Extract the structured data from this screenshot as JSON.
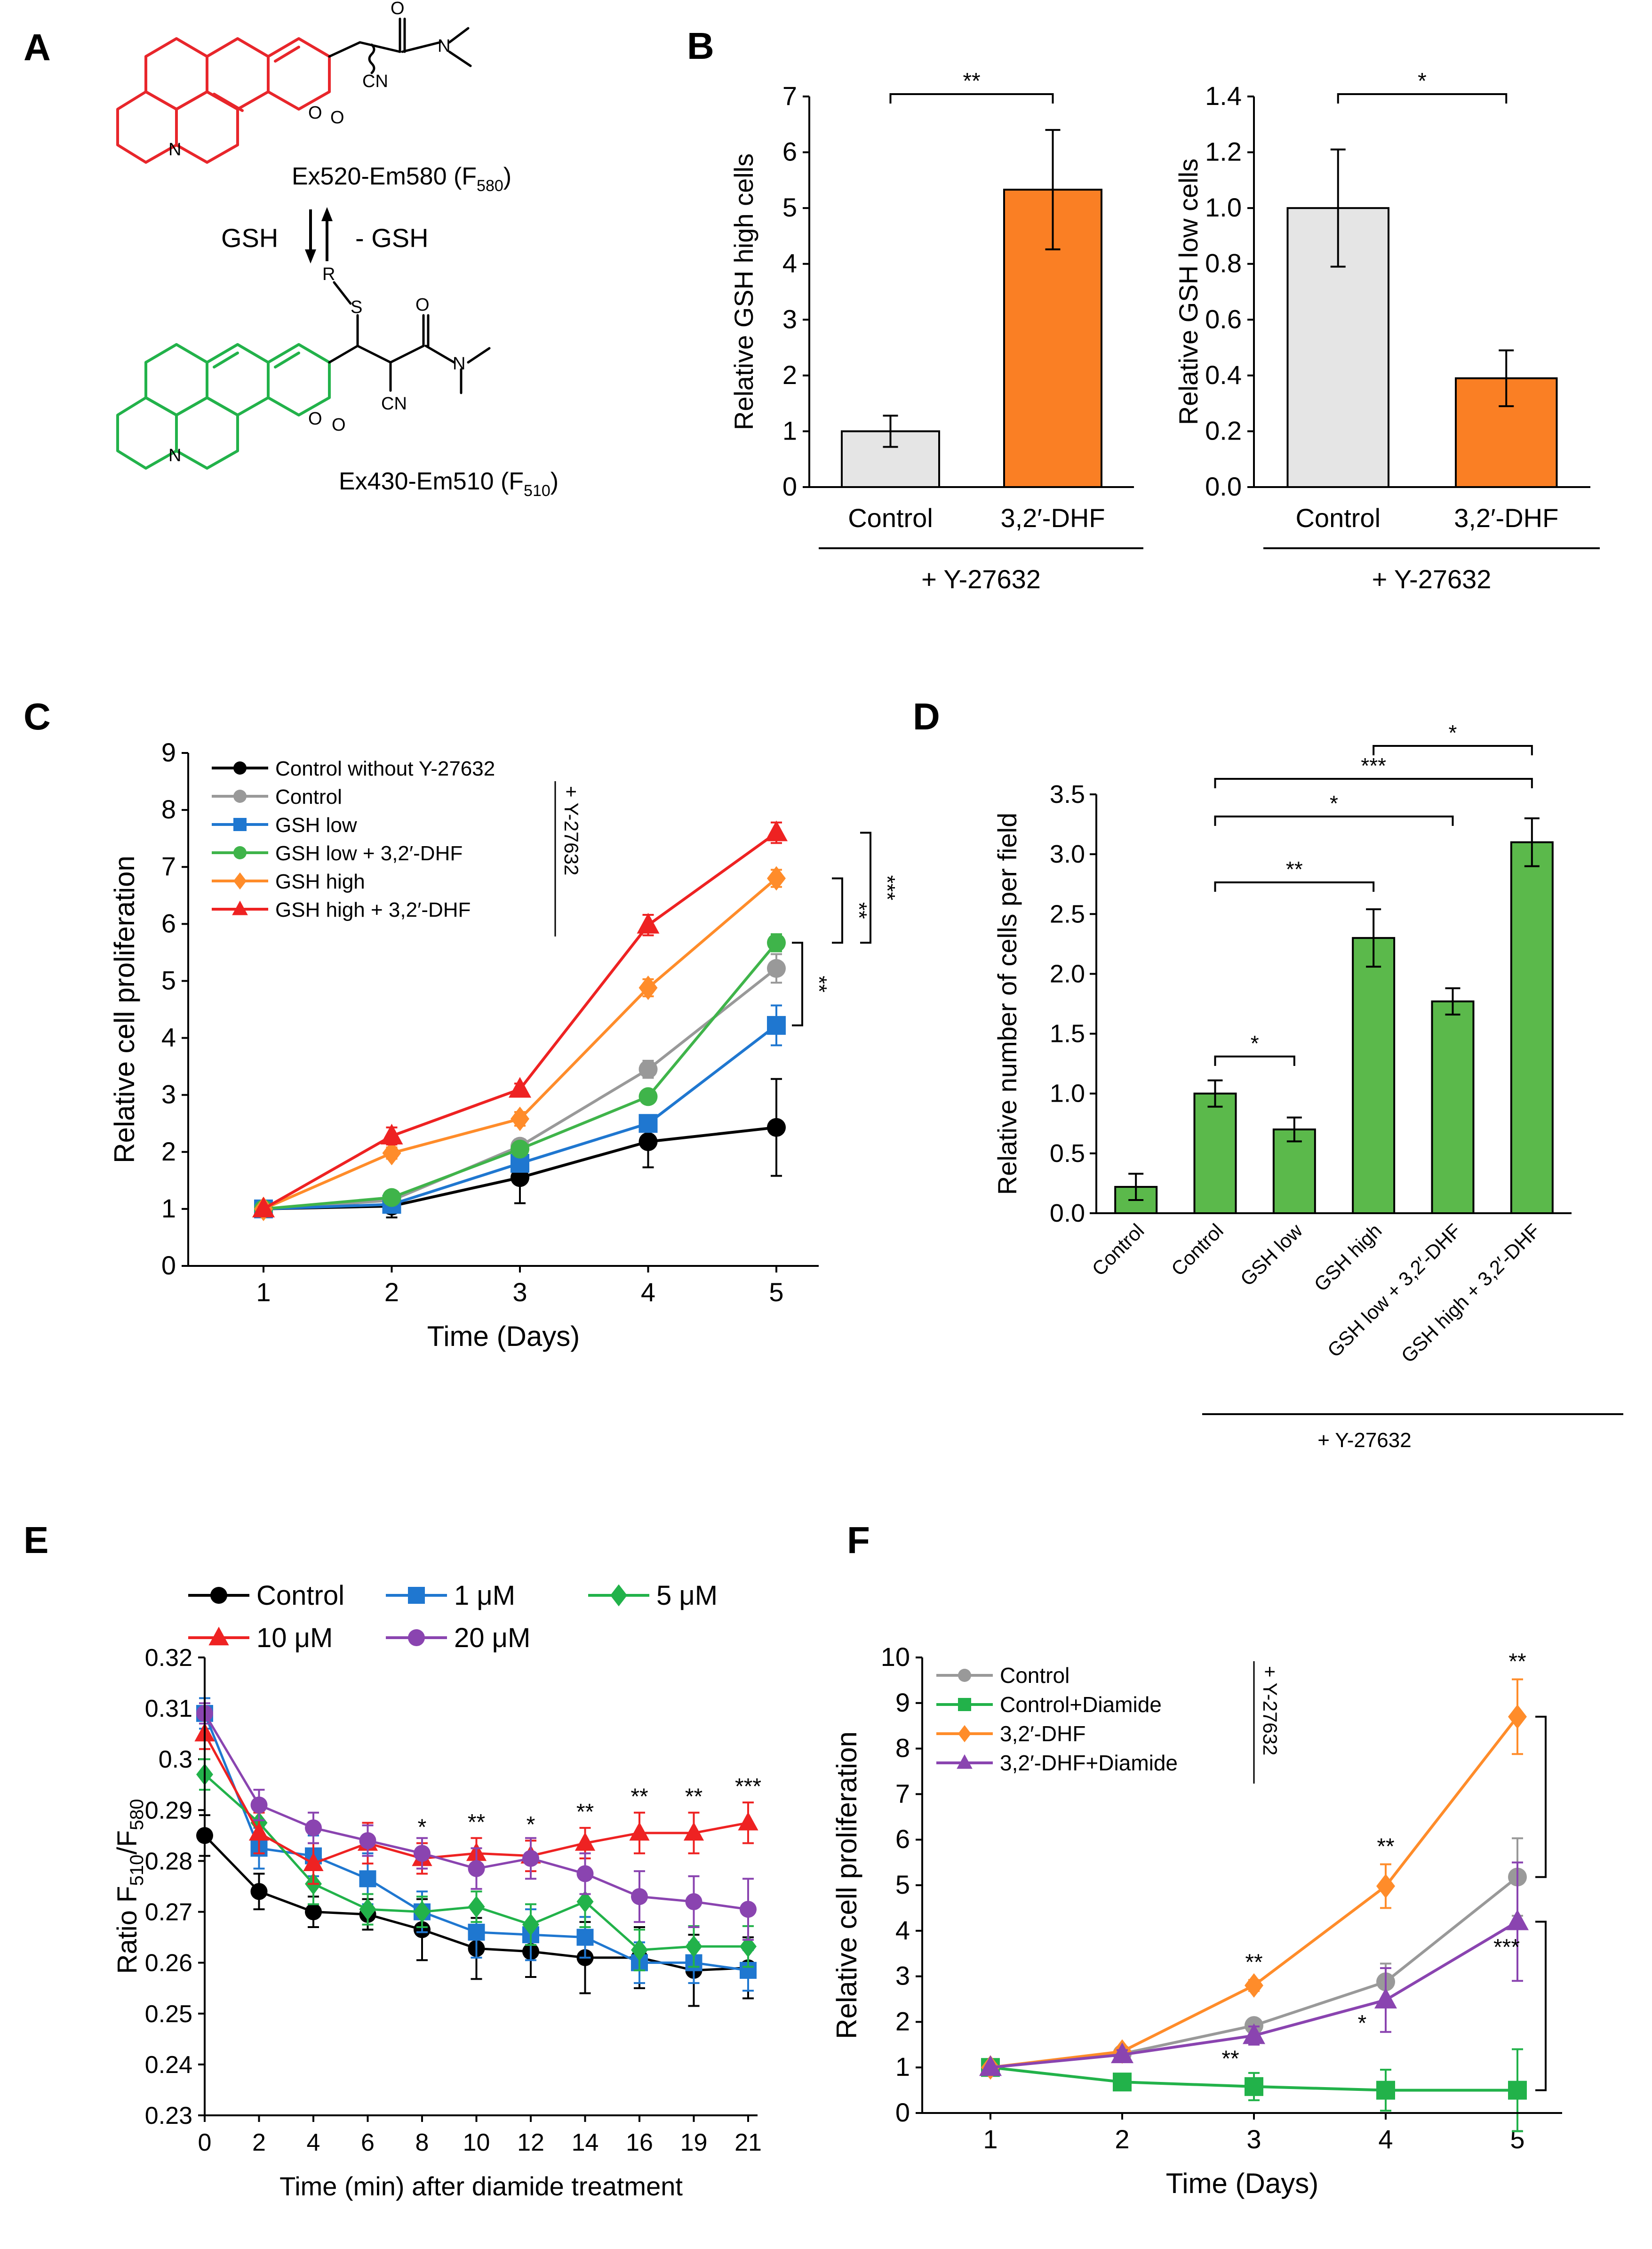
{
  "figure": {
    "panel_labels": [
      "A",
      "B",
      "C",
      "D",
      "E",
      "F"
    ]
  },
  "panel_a": {
    "top_molecule_label": "Ex520-Em580 (F",
    "top_molecule_sub": "580",
    "top_molecule_close": ")",
    "bottom_molecule_label": "Ex430-Em510 (F",
    "bottom_molecule_sub": "510",
    "bottom_molecule_close": ")",
    "reaction_forward": "GSH",
    "reaction_reverse": "- GSH",
    "atoms": {
      "oxygen": "O",
      "nitrogen": "N",
      "cn": "CN",
      "sulfur": "S",
      "r_group": "R"
    },
    "colors": {
      "red_form": "#e8262b",
      "green_form": "#22b24a"
    }
  },
  "chart_data": [
    {
      "id": "B-left",
      "type": "bar",
      "title": "",
      "xlabel": "",
      "ylabel": "Relative GSH high cells",
      "group_label": "+ Y-27632",
      "categories": [
        "Control",
        "3,2′-DHF"
      ],
      "values": [
        1.0,
        5.33
      ],
      "errors": [
        0.28,
        1.07
      ],
      "colors": [
        "#e5e5e5",
        "#fa7f24"
      ],
      "ylim": [
        0,
        7
      ],
      "yticks": [
        "0",
        "1",
        "2",
        "3",
        "4",
        "5",
        "6",
        "7"
      ],
      "significance": [
        {
          "from": 0,
          "to": 1,
          "label": "**"
        }
      ]
    },
    {
      "id": "B-right",
      "type": "bar",
      "title": "",
      "xlabel": "",
      "ylabel": "Relative GSH low cells",
      "group_label": "+ Y-27632",
      "categories": [
        "Control",
        "3,2′-DHF"
      ],
      "values": [
        1.0,
        0.39
      ],
      "errors": [
        0.21,
        0.1
      ],
      "colors": [
        "#e5e5e5",
        "#fa7f24"
      ],
      "ylim": [
        0,
        1.4
      ],
      "yticks": [
        "0.0",
        "0.2",
        "0.4",
        "0.6",
        "0.8",
        "1.0",
        "1.2",
        "1.4"
      ],
      "significance": [
        {
          "from": 0,
          "to": 1,
          "label": "*"
        }
      ]
    },
    {
      "id": "C",
      "type": "line",
      "title": "",
      "xlabel": "Time (Days)",
      "ylabel": "Relative cell proliferation",
      "x": [
        1,
        2,
        3,
        4,
        5
      ],
      "ylim": [
        0,
        9
      ],
      "yticks": [
        "0",
        "1",
        "2",
        "3",
        "4",
        "5",
        "6",
        "7",
        "8",
        "9"
      ],
      "legend_side_label": "+ Y-27632",
      "series": [
        {
          "name": "Control without Y-27632",
          "color": "#000000",
          "marker": "circle",
          "values": [
            1,
            1.05,
            1.55,
            2.18,
            2.43
          ],
          "errors": [
            0.03,
            0.2,
            0.45,
            0.45,
            0.85
          ]
        },
        {
          "name": "Control",
          "color": "#999999",
          "marker": "circle",
          "values": [
            1,
            1.15,
            2.1,
            3.45,
            5.22
          ],
          "errors": [
            0.03,
            0.1,
            0.12,
            0.15,
            0.25
          ]
        },
        {
          "name": "GSH low",
          "color": "#1f77d0",
          "marker": "square",
          "values": [
            1,
            1.08,
            1.8,
            2.5,
            4.22
          ],
          "errors": [
            0.03,
            0.08,
            0.1,
            0.1,
            0.35
          ]
        },
        {
          "name": "GSH low + 3,2′-DHF",
          "color": "#3fb44a",
          "marker": "circle",
          "values": [
            1,
            1.2,
            2.05,
            2.97,
            5.67
          ],
          "errors": [
            0.03,
            0.08,
            0.1,
            0.08,
            0.15
          ]
        },
        {
          "name": "GSH high",
          "color": "#ff8c2a",
          "marker": "diamond",
          "values": [
            1,
            1.98,
            2.58,
            4.88,
            6.8
          ],
          "errors": [
            0.03,
            0.1,
            0.12,
            0.15,
            0.15
          ]
        },
        {
          "name": "GSH high + 3,2′-DHF",
          "color": "#ee2222",
          "marker": "triangle",
          "values": [
            1,
            2.28,
            3.1,
            5.98,
            7.6
          ],
          "errors": [
            0.03,
            0.15,
            0.1,
            0.18,
            0.18
          ]
        }
      ],
      "significance": [
        {
          "label": "**",
          "y_from": 4.22,
          "y_to": 5.67
        },
        {
          "label": "**",
          "y_from": 5.67,
          "y_to": 6.8
        },
        {
          "label": "***",
          "y_from": 5.67,
          "y_to": 7.6
        }
      ]
    },
    {
      "id": "D",
      "type": "bar",
      "title": "",
      "xlabel": "",
      "ylabel": "Relative number of cells per field",
      "group_label": "+ Y-27632",
      "categories": [
        "Control",
        "Control",
        "GSH low",
        "GSH high",
        "GSH low + 3,2′-DHF",
        "GSH high + 3,2′-DHF"
      ],
      "values": [
        0.22,
        1.0,
        0.7,
        2.3,
        1.77,
        3.1
      ],
      "errors": [
        0.11,
        0.11,
        0.1,
        0.24,
        0.11,
        0.2
      ],
      "color": "#5bb94b",
      "ylim": [
        0,
        3.5
      ],
      "yticks": [
        "0.0",
        "0.5",
        "1.0",
        "1.5",
        "2.0",
        "2.5",
        "3.0",
        "3.5"
      ],
      "group_start_index": 1,
      "significance": [
        {
          "from": 1,
          "to": 2,
          "label": "*"
        },
        {
          "from": 1,
          "to": 3,
          "label": "**"
        },
        {
          "from": 1,
          "to": 4,
          "label": "*"
        },
        {
          "from": 1,
          "to": 5,
          "label": "***"
        },
        {
          "from": 3,
          "to": 5,
          "label": "*"
        }
      ]
    },
    {
      "id": "E",
      "type": "line",
      "title": "",
      "xlabel": "Time (min) after diamide treatment",
      "ylabel": "Ratio F",
      "ylabel_sub1": "510",
      "ylabel_mid": "/F",
      "ylabel_sub2": "580",
      "x": [
        0,
        2,
        4,
        6,
        8,
        10,
        12,
        14,
        16,
        19,
        21
      ],
      "xticks": [
        "0",
        "2",
        "4",
        "6",
        "8",
        "10",
        "12",
        "14",
        "16",
        "19",
        "21"
      ],
      "ylim": [
        0.23,
        0.32
      ],
      "yticks": [
        "0.23",
        "0.24",
        "0.25",
        "0.26",
        "0.27",
        "0.28",
        "0.29",
        "0.3",
        "0.31",
        "0.32"
      ],
      "series": [
        {
          "name": "Control",
          "color": "#000000",
          "marker": "circle",
          "values": [
            0.285,
            0.274,
            0.27,
            0.2695,
            0.2665,
            0.2628,
            0.2622,
            0.261,
            0.261,
            0.2585,
            0.259
          ],
          "errors": [
            0.004,
            0.0035,
            0.003,
            0.003,
            0.006,
            0.006,
            0.005,
            0.007,
            0.006,
            0.007,
            0.006
          ]
        },
        {
          "name": "1 μM",
          "color": "#1f77d0",
          "marker": "square",
          "values": [
            0.309,
            0.2825,
            0.281,
            0.2765,
            0.27,
            0.266,
            0.2655,
            0.265,
            0.26,
            0.26,
            0.2585
          ],
          "errors": [
            0.003,
            0.004,
            0.004,
            0.005,
            0.004,
            0.005,
            0.005,
            0.004,
            0.004,
            0.004,
            0.004
          ]
        },
        {
          "name": "5 μM",
          "color": "#22b24a",
          "marker": "diamond",
          "values": [
            0.297,
            0.2875,
            0.2755,
            0.2705,
            0.27,
            0.271,
            0.2675,
            0.272,
            0.2625,
            0.2632,
            0.2632
          ],
          "errors": [
            0.003,
            0.003,
            0.004,
            0.003,
            0.003,
            0.003,
            0.004,
            0.005,
            0.004,
            0.004,
            0.004
          ]
        },
        {
          "name": "10 μM",
          "color": "#ee2222",
          "marker": "triangle",
          "values": [
            0.305,
            0.2855,
            0.2795,
            0.2835,
            0.2805,
            0.2815,
            0.281,
            0.2835,
            0.2855,
            0.2855,
            0.2875
          ],
          "errors": [
            0.003,
            0.004,
            0.004,
            0.004,
            0.003,
            0.003,
            0.003,
            0.003,
            0.004,
            0.004,
            0.004
          ]
        },
        {
          "name": "20 μM",
          "color": "#8a44b0",
          "marker": "circle",
          "values": [
            0.309,
            0.291,
            0.2865,
            0.284,
            0.2815,
            0.2785,
            0.2805,
            0.2775,
            0.273,
            0.272,
            0.2705
          ],
          "errors": [
            0.002,
            0.003,
            0.003,
            0.003,
            0.003,
            0.004,
            0.004,
            0.004,
            0.005,
            0.005,
            0.006
          ]
        }
      ],
      "significance": [
        {
          "x": 8,
          "label": "*"
        },
        {
          "x": 10,
          "label": "**"
        },
        {
          "x": 12,
          "label": "*"
        },
        {
          "x": 14,
          "label": "**"
        },
        {
          "x": 16,
          "label": "**"
        },
        {
          "x": 19,
          "label": "**"
        },
        {
          "x": 21,
          "label": "***"
        }
      ]
    },
    {
      "id": "F",
      "type": "line",
      "title": "",
      "xlabel": "Time (Days)",
      "ylabel": "Relative cell proliferation",
      "x": [
        1,
        2,
        3,
        4,
        5
      ],
      "ylim": [
        0,
        10
      ],
      "yticks": [
        "0",
        "1",
        "2",
        "3",
        "4",
        "5",
        "6",
        "7",
        "8",
        "9",
        "10"
      ],
      "legend_side_label": "+ Y-27632",
      "series": [
        {
          "name": "Control",
          "color": "#999999",
          "marker": "circle",
          "values": [
            1,
            1.3,
            1.92,
            2.88,
            5.18
          ],
          "errors": [
            0.03,
            0.1,
            0.12,
            0.4,
            0.85
          ]
        },
        {
          "name": "Control+Diamide",
          "color": "#22b24a",
          "marker": "square",
          "values": [
            1,
            0.68,
            0.58,
            0.5,
            0.5
          ],
          "errors": [
            0.03,
            0.15,
            0.3,
            0.45,
            0.9
          ]
        },
        {
          "name": "3,2′-DHF",
          "color": "#ff8c2a",
          "marker": "diamond",
          "values": [
            1,
            1.35,
            2.8,
            4.98,
            8.7
          ],
          "errors": [
            0.03,
            0.1,
            0.12,
            0.48,
            0.82
          ]
        },
        {
          "name": "3,2′-DHF+Diamide",
          "color": "#8a44b0",
          "marker": "triangle",
          "values": [
            1,
            1.28,
            1.7,
            2.48,
            4.2
          ],
          "errors": [
            0.03,
            0.1,
            0.2,
            0.7,
            1.3
          ]
        }
      ],
      "significance": [
        {
          "x": 3,
          "label": "**",
          "position": "above"
        },
        {
          "x": 3,
          "label": "**",
          "position": "below"
        },
        {
          "x": 4,
          "label": "**",
          "position": "above"
        },
        {
          "x": 4,
          "label": "*",
          "position": "below"
        },
        {
          "x": 5,
          "label": "**",
          "position": "above"
        },
        {
          "label": "***",
          "position": "bracket",
          "y_from": 4.2,
          "y_to": 0.5
        }
      ]
    }
  ]
}
